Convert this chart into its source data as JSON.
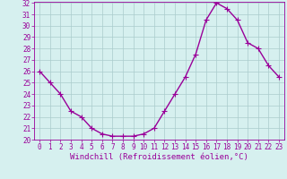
{
  "x": [
    0,
    1,
    2,
    3,
    4,
    5,
    6,
    7,
    8,
    9,
    10,
    11,
    12,
    13,
    14,
    15,
    16,
    17,
    18,
    19,
    20,
    21,
    22,
    23
  ],
  "y": [
    26,
    25,
    24,
    22.5,
    22,
    21,
    20.5,
    20.3,
    20.3,
    20.3,
    20.5,
    21,
    22.5,
    24,
    25.5,
    27.5,
    30.5,
    32,
    31.5,
    30.5,
    28.5,
    28,
    26.5,
    25.5
  ],
  "line_color": "#990099",
  "marker": "+",
  "marker_size": 4,
  "bg_color": "#d6f0ef",
  "grid_color": "#aacccc",
  "xlabel": "Windchill (Refroidissement éolien,°C)",
  "ylim": [
    20,
    32
  ],
  "xlim": [
    -0.5,
    23.5
  ],
  "yticks": [
    20,
    21,
    22,
    23,
    24,
    25,
    26,
    27,
    28,
    29,
    30,
    31,
    32
  ],
  "xticks": [
    0,
    1,
    2,
    3,
    4,
    5,
    6,
    7,
    8,
    9,
    10,
    11,
    12,
    13,
    14,
    15,
    16,
    17,
    18,
    19,
    20,
    21,
    22,
    23
  ],
  "xlabel_fontsize": 6.5,
  "tick_fontsize": 5.5,
  "line_width": 1.0
}
